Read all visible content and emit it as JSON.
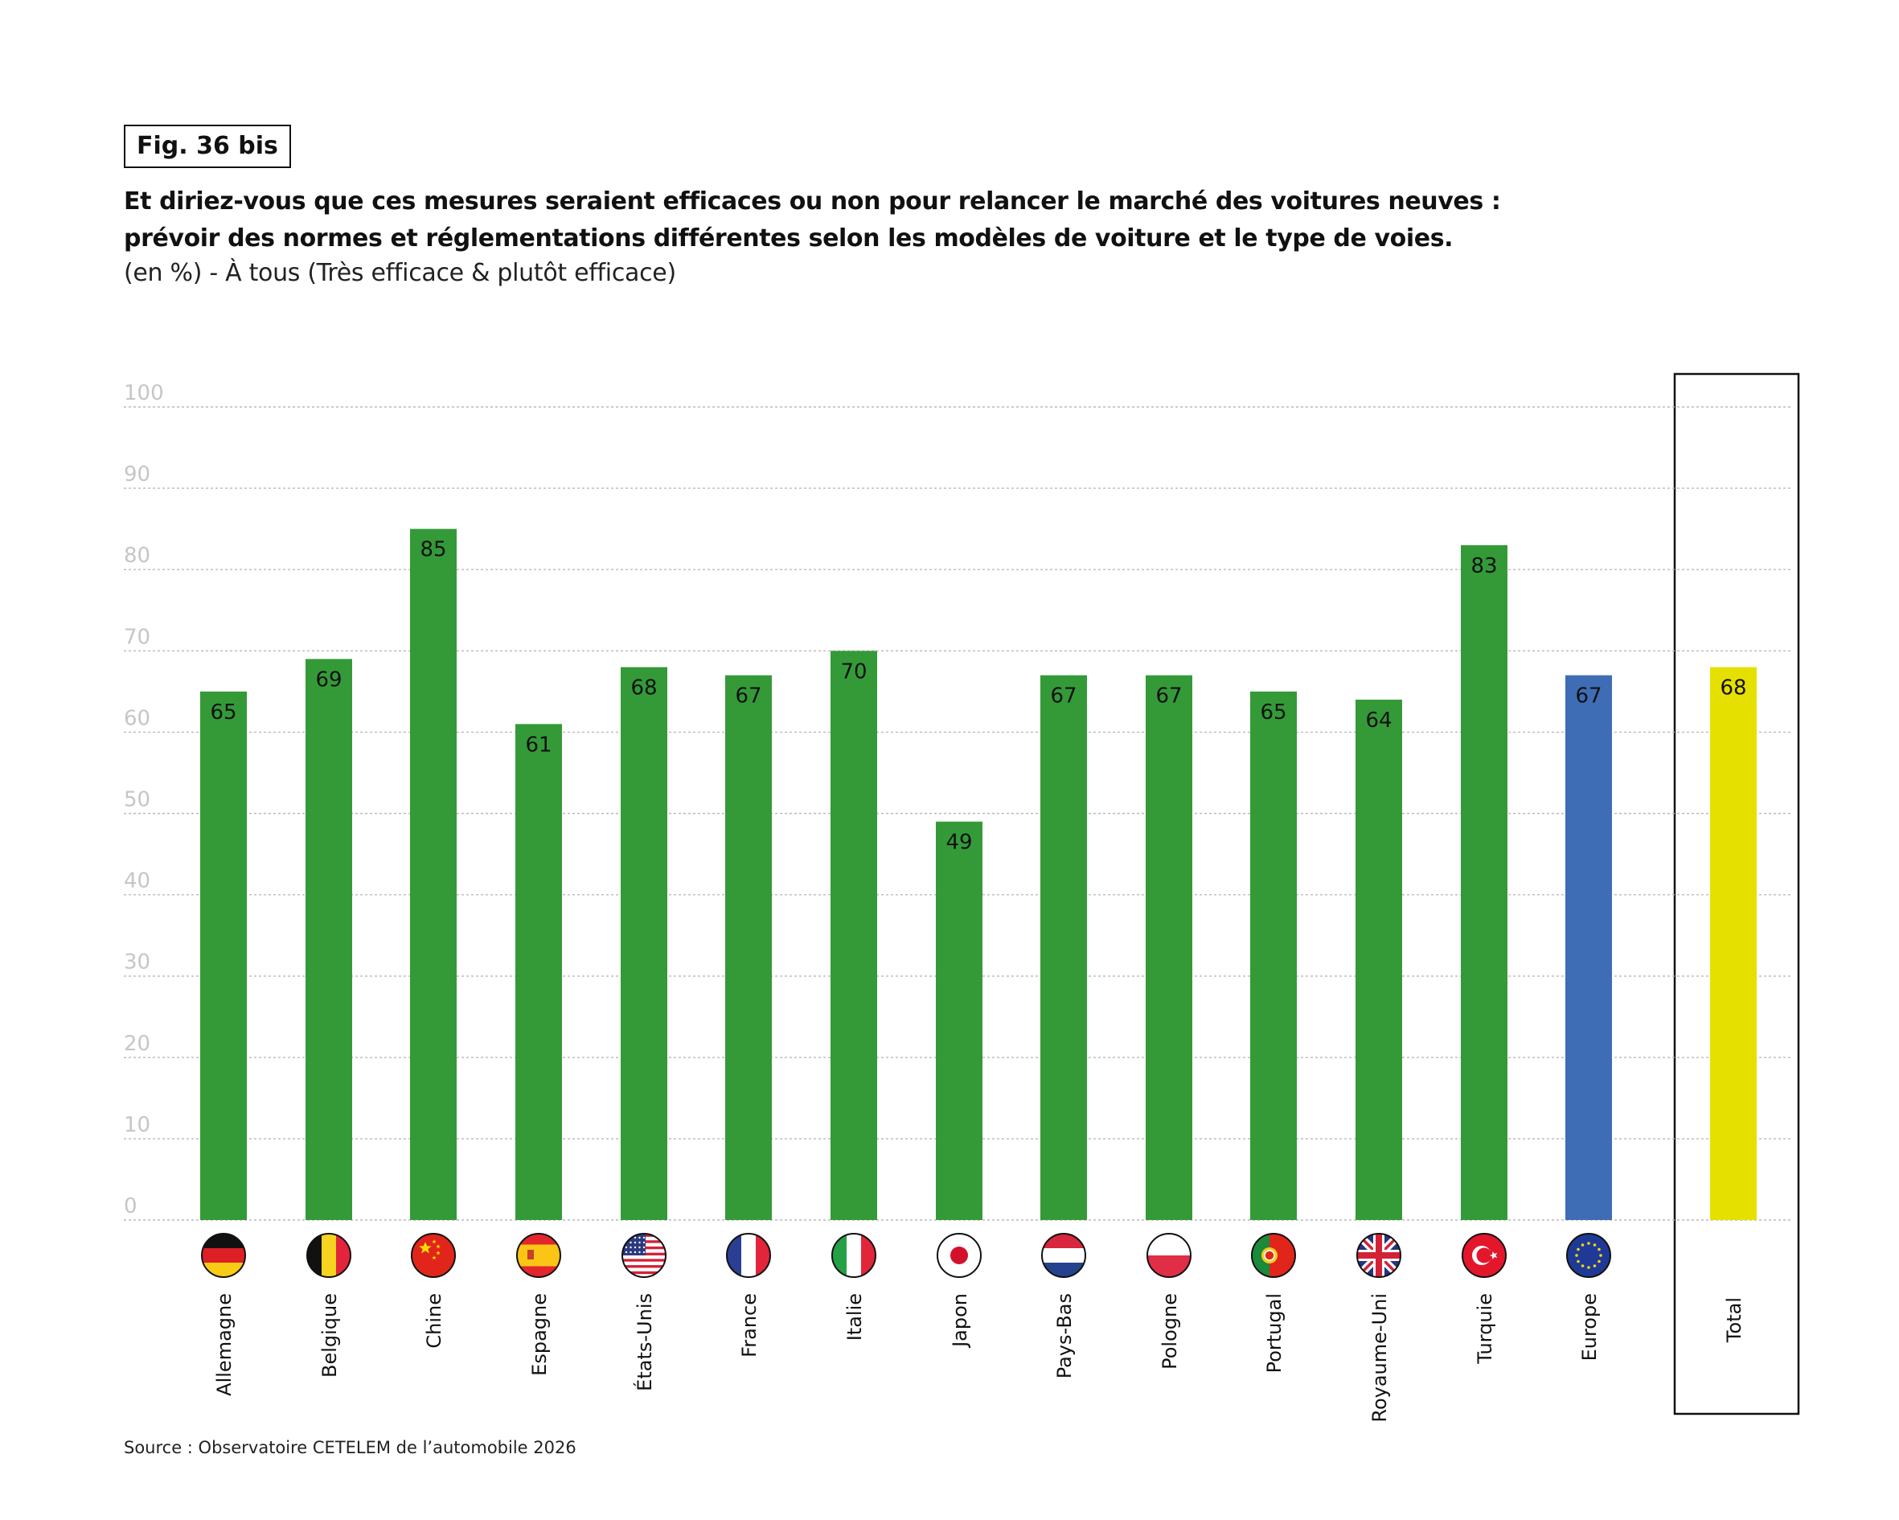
{
  "figure": {
    "label": "Fig. 36 bis",
    "title_line1": "Et diriez-vous que ces mesures seraient efficaces ou non pour relancer le marché des voitures neuves :",
    "title_line2": "prévoir des normes et réglementations différentes selon les modèles de voiture et le type de voies.",
    "subtitle": "(en %) - À tous (Très efficace & plutôt efficace)",
    "source": "Source : Observatoire CETELEM de l’automobile 2026"
  },
  "colors": {
    "country": "#349a38",
    "europe": "#3e6db5",
    "total": "#e6e000"
  },
  "chart_data": {
    "type": "bar",
    "ylim": [
      0,
      100
    ],
    "yticks": [
      0,
      10,
      20,
      30,
      40,
      50,
      60,
      70,
      80,
      90,
      100
    ],
    "grid": true,
    "xlabel": "",
    "ylabel": "",
    "categories": [
      "Allemagne",
      "Belgique",
      "Chine",
      "Espagne",
      "États-Unis",
      "France",
      "Italie",
      "Japon",
      "Pays-Bas",
      "Pologne",
      "Portugal",
      "Royaume-Uni",
      "Turquie",
      "Europe",
      "Total"
    ],
    "values": [
      65,
      69,
      85,
      61,
      68,
      67,
      70,
      49,
      67,
      67,
      65,
      64,
      83,
      67,
      68
    ],
    "bar_kinds": [
      "country",
      "country",
      "country",
      "country",
      "country",
      "country",
      "country",
      "country",
      "country",
      "country",
      "country",
      "country",
      "country",
      "europe",
      "total"
    ],
    "flags": [
      "germany-flag",
      "belgium-flag",
      "china-flag",
      "spain-flag",
      "usa-flag",
      "france-flag",
      "italy-flag",
      "japan-flag",
      "netherlands-flag",
      "poland-flag",
      "portugal-flag",
      "uk-flag",
      "turkey-flag",
      "eu-flag",
      null
    ]
  }
}
